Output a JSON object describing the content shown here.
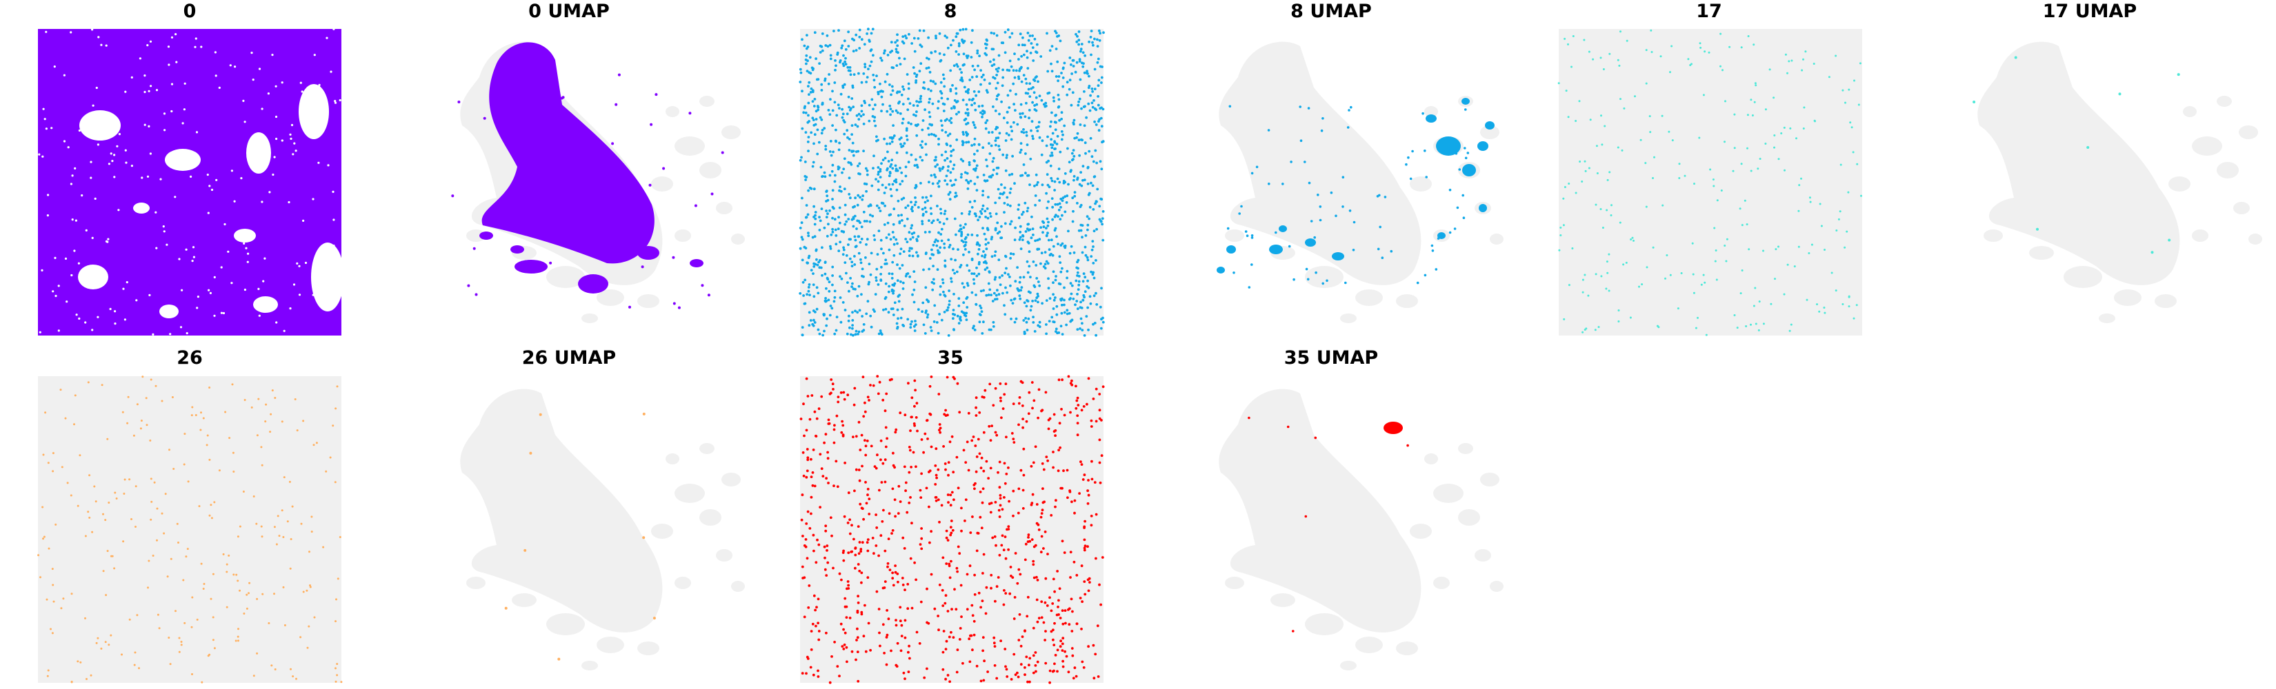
{
  "figure": {
    "background": "#ffffff",
    "background_color": "#f0f0f0",
    "panels": [
      {
        "title": "0",
        "kind": "spatial",
        "cluster": "0",
        "color": "#8000ff",
        "density": "dense"
      },
      {
        "title": "0 UMAP",
        "kind": "umap",
        "cluster": "0",
        "color": "#8000ff",
        "density": "dense"
      },
      {
        "title": "8",
        "kind": "spatial",
        "cluster": "8",
        "color": "#10a8e8",
        "density": "high"
      },
      {
        "title": "8 UMAP",
        "kind": "umap",
        "cluster": "8",
        "color": "#10a8e8",
        "density": "islands"
      },
      {
        "title": "17",
        "kind": "spatial",
        "cluster": "17",
        "color": "#4ee8d8",
        "density": "sparse"
      },
      {
        "title": "17 UMAP",
        "kind": "umap",
        "cluster": "17",
        "color": "#4ee8d8",
        "density": "tiny"
      },
      {
        "title": "26",
        "kind": "spatial",
        "cluster": "26",
        "color": "#ffb060",
        "density": "sparse"
      },
      {
        "title": "26 UMAP",
        "kind": "umap",
        "cluster": "26",
        "color": "#ffb060",
        "density": "tiny"
      },
      {
        "title": "35",
        "kind": "spatial",
        "cluster": "35",
        "color": "#ff0000",
        "density": "medium"
      },
      {
        "title": "35 UMAP",
        "kind": "umap",
        "cluster": "35",
        "color": "#ff0000",
        "density": "single-island"
      }
    ]
  },
  "chart_data": {
    "type": "scatter",
    "title": "",
    "xlabel": "",
    "ylabel": "",
    "grid": false,
    "axes_visible": false,
    "legend": "none",
    "layout": "grid of 2 rows × 6 columns (10 panels used)",
    "series": [
      {
        "name": "0",
        "views": [
          "spatial",
          "UMAP"
        ],
        "color": "#8000ff"
      },
      {
        "name": "8",
        "views": [
          "spatial",
          "UMAP"
        ],
        "color": "#10a8e8"
      },
      {
        "name": "17",
        "views": [
          "spatial",
          "UMAP"
        ],
        "color": "#4ee8d8"
      },
      {
        "name": "26",
        "views": [
          "spatial",
          "UMAP"
        ],
        "color": "#ffb060"
      },
      {
        "name": "35",
        "views": [
          "spatial",
          "UMAP"
        ],
        "color": "#ff0000"
      }
    ]
  }
}
